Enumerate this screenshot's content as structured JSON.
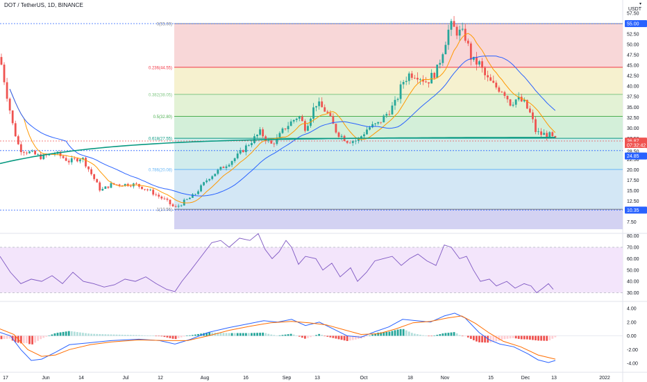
{
  "header": {
    "title": "DOT / TetherUS, 1D, BINANCE",
    "currency_top": "USDT"
  },
  "price_axis": {
    "labels": [
      "57.50",
      "55.00",
      "52.50",
      "50.00",
      "47.50",
      "45.00",
      "42.50",
      "40.00",
      "37.50",
      "35.00",
      "32.50",
      "30.00",
      "27.50",
      "22.50",
      "20.00",
      "17.50",
      "15.00",
      "12.50",
      "7.50"
    ],
    "label_values": [
      57.5,
      55,
      52.5,
      50,
      47.5,
      45,
      42.5,
      40,
      37.5,
      35,
      32.5,
      30,
      27.5,
      22.5,
      20,
      17.5,
      15,
      12.5,
      7.5
    ],
    "badges": [
      {
        "text": "55.00",
        "value": 55.0,
        "color": "#2962ff"
      },
      {
        "text": "26.87",
        "value": 26.87,
        "color": "#ef5350"
      },
      {
        "text": "07:32:42",
        "value": 25.9,
        "color": "#ef5350"
      },
      {
        "text": "28.50",
        "value": 24.4,
        "color": "#ffffff",
        "textcolor": "#131722"
      },
      {
        "text": "24.85",
        "value": 23.3,
        "color": "#2962ff"
      },
      {
        "text": "10.35",
        "value": 10.35,
        "color": "#2962ff"
      }
    ]
  },
  "fib": {
    "levels": [
      {
        "label": "0(55.00)",
        "value": 55.0,
        "color": "#787b86",
        "fill": "#f8d7d8"
      },
      {
        "label": "0.236(44.55)",
        "value": 44.55,
        "color": "#f23645",
        "fill": "#f6f1cf"
      },
      {
        "label": "0.382(38.05)",
        "value": 38.05,
        "color": "#81c784",
        "fill": "#e3f2d5"
      },
      {
        "label": "0.5(32.80)",
        "value": 32.8,
        "color": "#4caf50",
        "fill": "#d3efd9"
      },
      {
        "label": "0.618(27.55)",
        "value": 27.55,
        "color": "#089981",
        "fill": "#d1ecec"
      },
      {
        "label": "0.786(20.08)",
        "value": 20.08,
        "color": "#64b5f6",
        "fill": "#d3e7f5"
      },
      {
        "label": "1(10.56)",
        "value": 10.56,
        "color": "#787b86",
        "fill": "#e6e6e6"
      }
    ],
    "below_fill": "#d3d2f2"
  },
  "rsi": {
    "labels": [
      "80.00",
      "70.00",
      "60.00",
      "50.00",
      "40.00",
      "30.00"
    ],
    "label_values": [
      80,
      70,
      60,
      50,
      40,
      30
    ],
    "band_upper": 70,
    "band_lower": 30,
    "line_color": "#7e57c2",
    "band_color": "#f3e5fb"
  },
  "macd": {
    "labels": [
      "4.00",
      "2.00",
      "0.00",
      "-2.00",
      "-4.00"
    ],
    "label_values": [
      4,
      2,
      0,
      -2,
      -4
    ]
  },
  "time_axis": {
    "labels": [
      "17",
      "Jun",
      "14",
      "Jul",
      "12",
      "Aug",
      "16",
      "Sep",
      "13",
      "Oct",
      "18",
      "Nov",
      "15",
      "Dec",
      "13",
      "2022"
    ],
    "positions": [
      8,
      66,
      117,
      181,
      231,
      295,
      354,
      413,
      457,
      524,
      591,
      641,
      707,
      757,
      798,
      871
    ]
  },
  "colors": {
    "up": "#26a69a",
    "down": "#ef5350",
    "ema_fast": "#ff9800",
    "ma_slow": "#2962ff",
    "ma_200": "#089981",
    "macd_line": "#2962ff",
    "signal_line": "#ff6d00",
    "hist_up": "#26a69a",
    "hist_down": "#ef5350"
  }
}
